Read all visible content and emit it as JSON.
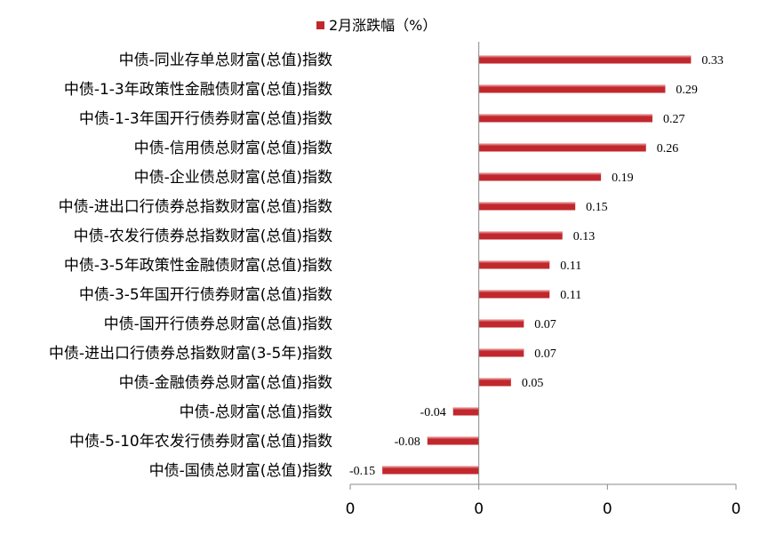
{
  "chart_data": {
    "type": "bar",
    "orientation": "horizontal",
    "legend": {
      "label": "2月涨跌幅（%）",
      "position": "top"
    },
    "series": [
      {
        "name": "2月涨跌幅（%）",
        "color": "#C0282D",
        "values": [
          0.33,
          0.29,
          0.27,
          0.26,
          0.19,
          0.15,
          0.13,
          0.11,
          0.11,
          0.07,
          0.07,
          0.05,
          -0.04,
          -0.08,
          -0.15
        ]
      }
    ],
    "categories": [
      "中债-同业存单总财富(总值)指数",
      "中债-1-3年政策性金融债财富(总值)指数",
      "中债-1-3年国开行债券财富(总值)指数",
      "中债-信用债总财富(总值)指数",
      "中债-企业债总财富(总值)指数",
      "中债-进出口行债券总指数财富(总值)指数",
      "中债-农发行债券总指数财富(总值)指数",
      "中债-3-5年政策性金融债财富(总值)指数",
      "中债-3-5年国开行债券财富(总值)指数",
      "中债-国开行债券总财富(总值)指数",
      "中债-进出口行债券总指数财富(3-5年)指数",
      "中债-金融债券总财富(总值)指数",
      "中债-总财富(总值)指数",
      "中债-5-10年农发行债券财富(总值)指数",
      "中债-国债总财富(总值)指数"
    ],
    "data_labels": [
      "0.33",
      "0.29",
      "0.27",
      "0.26",
      "0.19",
      "0.15",
      "0.13",
      "0.11",
      "0.11",
      "0.07",
      "0.07",
      "0.05",
      "-0.04",
      "-0.08",
      "-0.15"
    ],
    "x_tick_labels": [
      "0",
      "0",
      "0",
      "0"
    ],
    "xlim": [
      -0.2,
      0.4
    ],
    "grid": false
  }
}
